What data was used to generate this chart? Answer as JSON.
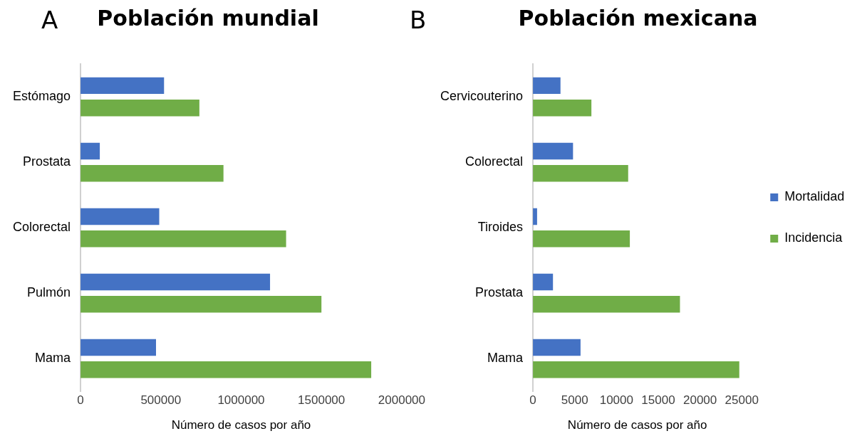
{
  "chart_data": [
    {
      "type": "bar",
      "orientation": "horizontal",
      "title": "Población mundial",
      "annotations": [
        "A"
      ],
      "xlabel": "Número de casos por año",
      "categories": [
        "Estómago",
        "Prostata",
        "Colorectal",
        "Pulmón",
        "Mama"
      ],
      "series": [
        {
          "color": "#4472c4",
          "values": [
            520000,
            120000,
            490000,
            1180000,
            470000
          ]
        },
        {
          "color": "#70ad47",
          "values": [
            740000,
            890000,
            1280000,
            1500000,
            1810000
          ]
        }
      ],
      "xlim": [
        0,
        2000000
      ],
      "xticks": [
        0,
        500000,
        1000000,
        1500000,
        2000000
      ],
      "grid": false,
      "legend": false
    },
    {
      "type": "bar",
      "orientation": "horizontal",
      "title": "Población mexicana",
      "annotations": [
        "B"
      ],
      "xlabel": "Número de casos por año",
      "categories": [
        "Cervicouterino",
        "Colorectal",
        "Tiroides",
        "Prostata",
        "Mama"
      ],
      "series": [
        {
          "name": "Mortalidad",
          "color": "#4472c4",
          "values": [
            3300,
            4800,
            500,
            2400,
            5700
          ]
        },
        {
          "name": "Incidencia",
          "color": "#70ad47",
          "values": [
            7000,
            11400,
            11600,
            17600,
            24700
          ]
        }
      ],
      "xlim": [
        0,
        25000
      ],
      "xticks": [
        0,
        5000,
        10000,
        15000,
        20000,
        25000
      ],
      "grid": false,
      "legend": "right"
    }
  ]
}
